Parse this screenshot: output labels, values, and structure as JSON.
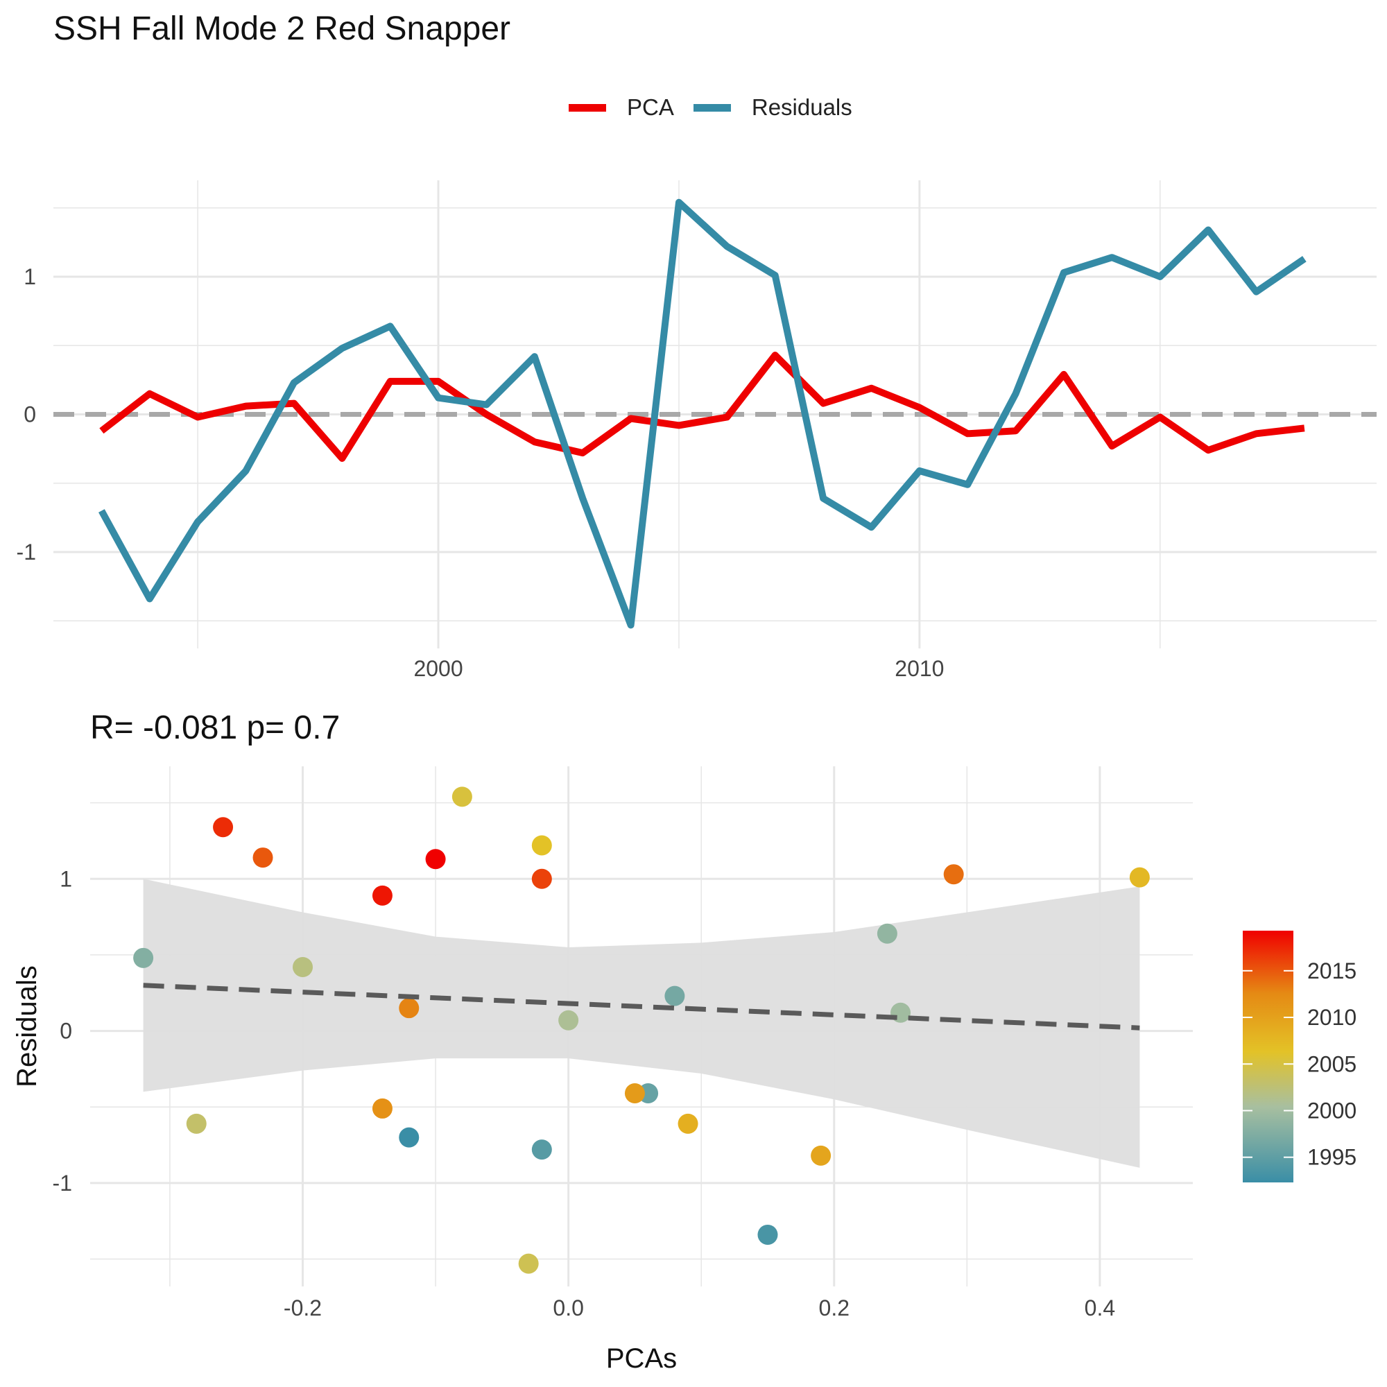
{
  "title": "SSH Fall Mode 2 Red Snapper",
  "subtitle": "R= -0.081  p= 0.7",
  "legend": {
    "pca_label": "PCA",
    "residuals_label": "Residuals"
  },
  "colors": {
    "pca": "#ee0000",
    "residuals": "#358ba6",
    "zero_line": "#a8a8a8",
    "fit_line": "#5a5a5a",
    "ribbon": "#dedede",
    "grid": "#e6e6e6",
    "colorbar_low": "#3a8ea6",
    "colorbar_mid": "#e3c227",
    "colorbar_high": "#f00000"
  },
  "chart_data": [
    {
      "type": "line",
      "title": "SSH Fall Mode 2 Red Snapper",
      "x": [
        1993,
        1994,
        1995,
        1996,
        1997,
        1998,
        1999,
        2000,
        2001,
        2002,
        2003,
        2004,
        2005,
        2006,
        2007,
        2008,
        2009,
        2010,
        2011,
        2012,
        2013,
        2014,
        2015,
        2016,
        2017,
        2018
      ],
      "series": [
        {
          "name": "PCA",
          "values": [
            -0.12,
            0.15,
            -0.02,
            0.06,
            0.08,
            -0.32,
            0.24,
            0.24,
            0.0,
            -0.2,
            -0.28,
            -0.03,
            -0.08,
            -0.02,
            0.43,
            0.08,
            0.19,
            0.05,
            -0.14,
            -0.12,
            0.29,
            -0.23,
            -0.02,
            -0.26,
            -0.14,
            -0.1
          ]
        },
        {
          "name": "Residuals",
          "values": [
            -0.7,
            -1.34,
            -0.78,
            -0.41,
            0.23,
            0.48,
            0.64,
            0.12,
            0.07,
            0.42,
            -0.61,
            -1.53,
            1.54,
            1.22,
            1.01,
            -0.61,
            -0.82,
            -0.41,
            -0.51,
            0.15,
            1.03,
            1.14,
            1.0,
            1.34,
            0.89,
            1.13
          ]
        }
      ],
      "x_ticks": [
        2000,
        2010
      ],
      "y_ticks": [
        -1,
        0,
        1
      ],
      "x_tick_labels": [
        "2000",
        "2010"
      ],
      "y_tick_labels": [
        "-1",
        "0",
        "1"
      ],
      "xlim": [
        1992,
        2019.5
      ],
      "ylim": [
        -1.7,
        1.7
      ],
      "xlabel": "",
      "ylabel": "",
      "reference_line": 0,
      "grid": true,
      "legend_position": "top"
    },
    {
      "type": "scatter",
      "title": "R= -0.081  p= 0.7",
      "xlabel": "PCAs",
      "ylabel": "Residuals",
      "x_ticks": [
        -0.2,
        0.0,
        0.2,
        0.4
      ],
      "x_tick_labels": [
        "-0.2",
        "0.0",
        "0.2",
        "0.4"
      ],
      "y_ticks": [
        -1,
        0,
        1
      ],
      "y_tick_labels": [
        "-1",
        "0",
        "1"
      ],
      "xlim": [
        -0.36,
        0.47
      ],
      "ylim": [
        -1.68,
        1.74
      ],
      "points": [
        {
          "year": 1993,
          "x": -0.12,
          "y": -0.7
        },
        {
          "year": 1994,
          "x": 0.15,
          "y": -1.34
        },
        {
          "year": 1995,
          "x": -0.02,
          "y": -0.78
        },
        {
          "year": 1996,
          "x": 0.06,
          "y": -0.41
        },
        {
          "year": 1997,
          "x": 0.08,
          "y": 0.23
        },
        {
          "year": 1998,
          "x": -0.32,
          "y": 0.48
        },
        {
          "year": 1999,
          "x": 0.24,
          "y": 0.64
        },
        {
          "year": 2000,
          "x": 0.25,
          "y": 0.12
        },
        {
          "year": 2001,
          "x": 0.0,
          "y": 0.07
        },
        {
          "year": 2002,
          "x": -0.2,
          "y": 0.42
        },
        {
          "year": 2003,
          "x": -0.28,
          "y": -0.61
        },
        {
          "year": 2004,
          "x": -0.03,
          "y": -1.53
        },
        {
          "year": 2005,
          "x": -0.08,
          "y": 1.54
        },
        {
          "year": 2006,
          "x": -0.02,
          "y": 1.22
        },
        {
          "year": 2007,
          "x": 0.43,
          "y": 1.01
        },
        {
          "year": 2008,
          "x": 0.09,
          "y": -0.61
        },
        {
          "year": 2009,
          "x": 0.19,
          "y": -0.82
        },
        {
          "year": 2010,
          "x": 0.05,
          "y": -0.41
        },
        {
          "year": 2011,
          "x": -0.14,
          "y": -0.51
        },
        {
          "year": 2012,
          "x": -0.12,
          "y": 0.15
        },
        {
          "year": 2013,
          "x": 0.29,
          "y": 1.03
        },
        {
          "year": 2014,
          "x": -0.23,
          "y": 1.14
        },
        {
          "year": 2015,
          "x": -0.02,
          "y": 1.0
        },
        {
          "year": 2016,
          "x": -0.26,
          "y": 1.34
        },
        {
          "year": 2017,
          "x": -0.14,
          "y": 0.89
        },
        {
          "year": 2018,
          "x": -0.1,
          "y": 1.13
        }
      ],
      "fit": {
        "x": [
          -0.32,
          0.43
        ],
        "y": [
          0.3,
          0.02
        ]
      },
      "confidence_band": {
        "x": [
          -0.32,
          -0.2,
          -0.1,
          0.0,
          0.1,
          0.2,
          0.3,
          0.43
        ],
        "upper": [
          1.0,
          0.78,
          0.62,
          0.55,
          0.58,
          0.65,
          0.78,
          0.95
        ],
        "lower": [
          -0.4,
          -0.26,
          -0.18,
          -0.18,
          -0.28,
          -0.45,
          -0.65,
          -0.9
        ]
      },
      "colorbar": {
        "ticks": [
          1995,
          2000,
          2005,
          2010,
          2015
        ],
        "tick_labels": [
          "1995",
          "2000",
          "2005",
          "2010",
          "2015"
        ],
        "range": [
          1993,
          2018
        ]
      },
      "grid": true
    }
  ]
}
